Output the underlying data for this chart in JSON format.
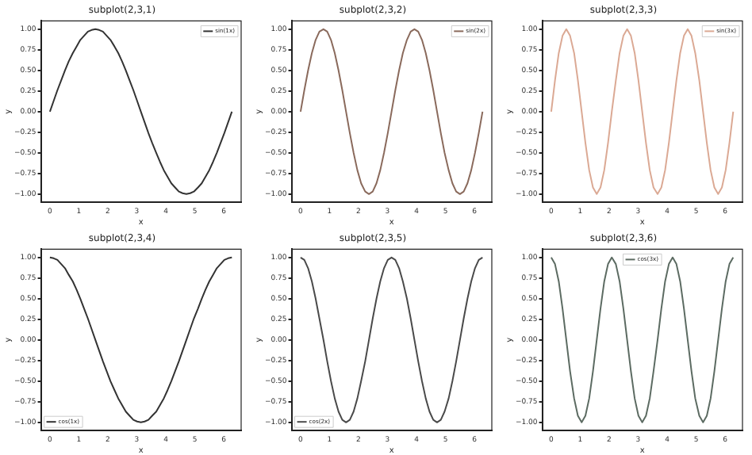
{
  "chart_data": [
    {
      "type": "line",
      "title": "subplot(2,3,1)",
      "xlabel": "x",
      "ylabel": "y",
      "legend": "top right",
      "xlim": [
        -0.31,
        6.6
      ],
      "ylim": [
        -1.1,
        1.1
      ],
      "xticks": [
        0,
        1,
        2,
        3,
        4,
        5,
        6
      ],
      "yticks": [
        {
          "value": -1,
          "label": "−1.00"
        },
        {
          "value": -0.75,
          "label": "−0.75"
        },
        {
          "value": -0.5,
          "label": "−0.50"
        },
        {
          "value": -0.25,
          "label": "−0.25"
        },
        {
          "value": 0,
          "label": "0.00"
        },
        {
          "value": 0.25,
          "label": "0.25"
        },
        {
          "value": 0.5,
          "label": "0.50"
        },
        {
          "value": 0.75,
          "label": "0.75"
        },
        {
          "value": 1,
          "label": "1.00"
        }
      ],
      "x": [
        0,
        0.13,
        0.26,
        0.39,
        0.52,
        0.65,
        0.79,
        0.92,
        1.05,
        1.18,
        1.31,
        1.44,
        1.57,
        1.7,
        1.83,
        1.96,
        2.09,
        2.23,
        2.36,
        2.49,
        2.62,
        2.75,
        2.88,
        3.01,
        3.14,
        3.27,
        3.4,
        3.53,
        3.67,
        3.8,
        3.93,
        4.06,
        4.19,
        4.32,
        4.45,
        4.58,
        4.71,
        4.84,
        4.97,
        5.11,
        5.24,
        5.37,
        5.5,
        5.63,
        5.76,
        5.89,
        6.02,
        6.15,
        6.28
      ],
      "series": [
        {
          "name": "sin(1x)",
          "color": "#333333",
          "values": [
            0,
            0.13,
            0.26,
            0.38,
            0.5,
            0.61,
            0.71,
            0.79,
            0.87,
            0.92,
            0.97,
            0.99,
            1,
            0.99,
            0.97,
            0.92,
            0.87,
            0.79,
            0.71,
            0.61,
            0.5,
            0.38,
            0.26,
            0.13,
            0,
            -0.13,
            -0.26,
            -0.38,
            -0.5,
            -0.61,
            -0.71,
            -0.79,
            -0.87,
            -0.92,
            -0.97,
            -0.99,
            -1,
            -0.99,
            -0.97,
            -0.92,
            -0.87,
            -0.79,
            -0.71,
            -0.61,
            -0.5,
            -0.38,
            -0.26,
            -0.13,
            0
          ]
        }
      ]
    },
    {
      "type": "line",
      "title": "subplot(2,3,2)",
      "xlabel": "x",
      "ylabel": "y",
      "legend": "top right",
      "xlim": [
        -0.31,
        6.6
      ],
      "ylim": [
        -1.1,
        1.1
      ],
      "xticks": [
        0,
        1,
        2,
        3,
        4,
        5,
        6
      ],
      "yticks": [
        {
          "value": -1,
          "label": "−1.00"
        },
        {
          "value": -0.75,
          "label": "−0.75"
        },
        {
          "value": -0.5,
          "label": "−0.50"
        },
        {
          "value": -0.25,
          "label": "−0.25"
        },
        {
          "value": 0,
          "label": "0.00"
        },
        {
          "value": 0.25,
          "label": "0.25"
        },
        {
          "value": 0.5,
          "label": "0.50"
        },
        {
          "value": 0.75,
          "label": "0.75"
        },
        {
          "value": 1,
          "label": "1.00"
        }
      ],
      "x": [
        0,
        0.13,
        0.26,
        0.39,
        0.52,
        0.65,
        0.79,
        0.92,
        1.05,
        1.18,
        1.31,
        1.44,
        1.57,
        1.7,
        1.83,
        1.96,
        2.09,
        2.23,
        2.36,
        2.49,
        2.62,
        2.75,
        2.88,
        3.01,
        3.14,
        3.27,
        3.4,
        3.53,
        3.67,
        3.8,
        3.93,
        4.06,
        4.19,
        4.32,
        4.45,
        4.58,
        4.71,
        4.84,
        4.97,
        5.11,
        5.24,
        5.37,
        5.5,
        5.63,
        5.76,
        5.89,
        6.02,
        6.15,
        6.28
      ],
      "series": [
        {
          "name": "sin(2x)",
          "color": "#8a6a5c",
          "values": [
            0,
            0.26,
            0.5,
            0.71,
            0.87,
            0.97,
            1,
            0.97,
            0.87,
            0.71,
            0.5,
            0.26,
            0,
            -0.26,
            -0.5,
            -0.71,
            -0.87,
            -0.97,
            -1,
            -0.97,
            -0.87,
            -0.71,
            -0.5,
            -0.26,
            0,
            0.26,
            0.5,
            0.71,
            0.87,
            0.97,
            1,
            0.97,
            0.87,
            0.71,
            0.5,
            0.26,
            0,
            -0.26,
            -0.5,
            -0.71,
            -0.87,
            -0.97,
            -1,
            -0.97,
            -0.87,
            -0.71,
            -0.5,
            -0.26,
            0
          ]
        }
      ]
    },
    {
      "type": "line",
      "title": "subplot(2,3,3)",
      "xlabel": "x",
      "ylabel": "y",
      "legend": "top right",
      "xlim": [
        -0.31,
        6.6
      ],
      "ylim": [
        -1.1,
        1.1
      ],
      "xticks": [
        0,
        1,
        2,
        3,
        4,
        5,
        6
      ],
      "yticks": [
        {
          "value": -1,
          "label": "−1.00"
        },
        {
          "value": -0.75,
          "label": "−0.75"
        },
        {
          "value": -0.5,
          "label": "−0.50"
        },
        {
          "value": -0.25,
          "label": "−0.25"
        },
        {
          "value": 0,
          "label": "0.00"
        },
        {
          "value": 0.25,
          "label": "0.25"
        },
        {
          "value": 0.5,
          "label": "0.50"
        },
        {
          "value": 0.75,
          "label": "0.75"
        },
        {
          "value": 1,
          "label": "1.00"
        }
      ],
      "x": [
        0,
        0.13,
        0.26,
        0.39,
        0.52,
        0.65,
        0.79,
        0.92,
        1.05,
        1.18,
        1.31,
        1.44,
        1.57,
        1.7,
        1.83,
        1.96,
        2.09,
        2.23,
        2.36,
        2.49,
        2.62,
        2.75,
        2.88,
        3.01,
        3.14,
        3.27,
        3.4,
        3.53,
        3.67,
        3.8,
        3.93,
        4.06,
        4.19,
        4.32,
        4.45,
        4.58,
        4.71,
        4.84,
        4.97,
        5.11,
        5.24,
        5.37,
        5.5,
        5.63,
        5.76,
        5.89,
        6.02,
        6.15,
        6.28
      ],
      "series": [
        {
          "name": "sin(3x)",
          "color": "#dba994",
          "values": [
            0,
            0.38,
            0.71,
            0.92,
            1,
            0.92,
            0.71,
            0.38,
            0,
            -0.38,
            -0.71,
            -0.92,
            -1,
            -0.92,
            -0.71,
            -0.38,
            0,
            0.38,
            0.71,
            0.92,
            1,
            0.92,
            0.71,
            0.38,
            0,
            -0.38,
            -0.71,
            -0.92,
            -1,
            -0.92,
            -0.71,
            -0.38,
            0,
            0.38,
            0.71,
            0.92,
            1,
            0.92,
            0.71,
            0.38,
            0,
            -0.38,
            -0.71,
            -0.92,
            -1,
            -0.92,
            -0.71,
            -0.38,
            0
          ]
        }
      ]
    },
    {
      "type": "line",
      "title": "subplot(2,3,4)",
      "xlabel": "x",
      "ylabel": "y",
      "legend": "bottom left",
      "xlim": [
        -0.31,
        6.6
      ],
      "ylim": [
        -1.1,
        1.1
      ],
      "xticks": [
        0,
        1,
        2,
        3,
        4,
        5,
        6
      ],
      "yticks": [
        {
          "value": -1,
          "label": "−1.00"
        },
        {
          "value": -0.75,
          "label": "−0.75"
        },
        {
          "value": -0.5,
          "label": "−0.50"
        },
        {
          "value": -0.25,
          "label": "−0.25"
        },
        {
          "value": 0,
          "label": "0.00"
        },
        {
          "value": 0.25,
          "label": "0.25"
        },
        {
          "value": 0.5,
          "label": "0.50"
        },
        {
          "value": 0.75,
          "label": "0.75"
        },
        {
          "value": 1,
          "label": "1.00"
        }
      ],
      "x": [
        0,
        0.13,
        0.26,
        0.39,
        0.52,
        0.65,
        0.79,
        0.92,
        1.05,
        1.18,
        1.31,
        1.44,
        1.57,
        1.7,
        1.83,
        1.96,
        2.09,
        2.23,
        2.36,
        2.49,
        2.62,
        2.75,
        2.88,
        3.01,
        3.14,
        3.27,
        3.4,
        3.53,
        3.67,
        3.8,
        3.93,
        4.06,
        4.19,
        4.32,
        4.45,
        4.58,
        4.71,
        4.84,
        4.97,
        5.11,
        5.24,
        5.37,
        5.5,
        5.63,
        5.76,
        5.89,
        6.02,
        6.15,
        6.28
      ],
      "series": [
        {
          "name": "cos(1x)",
          "color": "#333333",
          "values": [
            1,
            0.99,
            0.97,
            0.92,
            0.87,
            0.79,
            0.71,
            0.61,
            0.5,
            0.38,
            0.26,
            0.13,
            0,
            -0.13,
            -0.26,
            -0.38,
            -0.5,
            -0.61,
            -0.71,
            -0.79,
            -0.87,
            -0.92,
            -0.97,
            -0.99,
            -1,
            -0.99,
            -0.97,
            -0.92,
            -0.87,
            -0.79,
            -0.71,
            -0.61,
            -0.5,
            -0.38,
            -0.26,
            -0.13,
            0,
            0.13,
            0.26,
            0.38,
            0.5,
            0.61,
            0.71,
            0.79,
            0.87,
            0.92,
            0.97,
            0.99,
            1
          ]
        }
      ]
    },
    {
      "type": "line",
      "title": "subplot(2,3,5)",
      "xlabel": "x",
      "ylabel": "y",
      "legend": "bottom left",
      "xlim": [
        -0.31,
        6.6
      ],
      "ylim": [
        -1.1,
        1.1
      ],
      "xticks": [
        0,
        1,
        2,
        3,
        4,
        5,
        6
      ],
      "yticks": [
        {
          "value": -1,
          "label": "−1.00"
        },
        {
          "value": -0.75,
          "label": "−0.75"
        },
        {
          "value": -0.5,
          "label": "−0.50"
        },
        {
          "value": -0.25,
          "label": "−0.25"
        },
        {
          "value": 0,
          "label": "0.00"
        },
        {
          "value": 0.25,
          "label": "0.25"
        },
        {
          "value": 0.5,
          "label": "0.50"
        },
        {
          "value": 0.75,
          "label": "0.75"
        },
        {
          "value": 1,
          "label": "1.00"
        }
      ],
      "x": [
        0,
        0.13,
        0.26,
        0.39,
        0.52,
        0.65,
        0.79,
        0.92,
        1.05,
        1.18,
        1.31,
        1.44,
        1.57,
        1.7,
        1.83,
        1.96,
        2.09,
        2.23,
        2.36,
        2.49,
        2.62,
        2.75,
        2.88,
        3.01,
        3.14,
        3.27,
        3.4,
        3.53,
        3.67,
        3.8,
        3.93,
        4.06,
        4.19,
        4.32,
        4.45,
        4.58,
        4.71,
        4.84,
        4.97,
        5.11,
        5.24,
        5.37,
        5.5,
        5.63,
        5.76,
        5.89,
        6.02,
        6.15,
        6.28
      ],
      "series": [
        {
          "name": "cos(2x)",
          "color": "#4a4a4a",
          "values": [
            1,
            0.97,
            0.87,
            0.71,
            0.5,
            0.26,
            0,
            -0.26,
            -0.5,
            -0.71,
            -0.87,
            -0.97,
            -1,
            -0.97,
            -0.87,
            -0.71,
            -0.5,
            -0.26,
            0,
            0.26,
            0.5,
            0.71,
            0.87,
            0.97,
            1,
            0.97,
            0.87,
            0.71,
            0.5,
            0.26,
            0,
            -0.26,
            -0.5,
            -0.71,
            -0.87,
            -0.97,
            -1,
            -0.97,
            -0.87,
            -0.71,
            -0.5,
            -0.26,
            0,
            0.26,
            0.5,
            0.71,
            0.87,
            0.97,
            1
          ]
        }
      ]
    },
    {
      "type": "line",
      "title": "subplot(2,3,6)",
      "xlabel": "x",
      "ylabel": "y",
      "legend": "top",
      "xlim": [
        -0.31,
        6.6
      ],
      "ylim": [
        -1.1,
        1.1
      ],
      "xticks": [
        0,
        1,
        2,
        3,
        4,
        5,
        6
      ],
      "yticks": [
        {
          "value": -1,
          "label": "−1.00"
        },
        {
          "value": -0.75,
          "label": "−0.75"
        },
        {
          "value": -0.5,
          "label": "−0.50"
        },
        {
          "value": -0.25,
          "label": "−0.25"
        },
        {
          "value": 0,
          "label": "0.00"
        },
        {
          "value": 0.25,
          "label": "0.25"
        },
        {
          "value": 0.5,
          "label": "0.50"
        },
        {
          "value": 0.75,
          "label": "0.75"
        },
        {
          "value": 1,
          "label": "1.00"
        }
      ],
      "x": [
        0,
        0.13,
        0.26,
        0.39,
        0.52,
        0.65,
        0.79,
        0.92,
        1.05,
        1.18,
        1.31,
        1.44,
        1.57,
        1.7,
        1.83,
        1.96,
        2.09,
        2.23,
        2.36,
        2.49,
        2.62,
        2.75,
        2.88,
        3.01,
        3.14,
        3.27,
        3.4,
        3.53,
        3.67,
        3.8,
        3.93,
        4.06,
        4.19,
        4.32,
        4.45,
        4.58,
        4.71,
        4.84,
        4.97,
        5.11,
        5.24,
        5.37,
        5.5,
        5.63,
        5.76,
        5.89,
        6.02,
        6.15,
        6.28
      ],
      "series": [
        {
          "name": "cos(3x)",
          "color": "#5c6b62",
          "values": [
            1,
            0.92,
            0.71,
            0.38,
            0,
            -0.38,
            -0.71,
            -0.92,
            -1,
            -0.92,
            -0.71,
            -0.38,
            0,
            0.38,
            0.71,
            0.92,
            1,
            0.92,
            0.71,
            0.38,
            0,
            -0.38,
            -0.71,
            -0.92,
            -1,
            -0.92,
            -0.71,
            -0.38,
            0,
            0.38,
            0.71,
            0.92,
            1,
            0.92,
            0.71,
            0.38,
            0,
            -0.38,
            -0.71,
            -0.92,
            -1,
            -0.92,
            -0.71,
            -0.38,
            0,
            0.38,
            0.71,
            0.92,
            1
          ]
        }
      ]
    }
  ]
}
